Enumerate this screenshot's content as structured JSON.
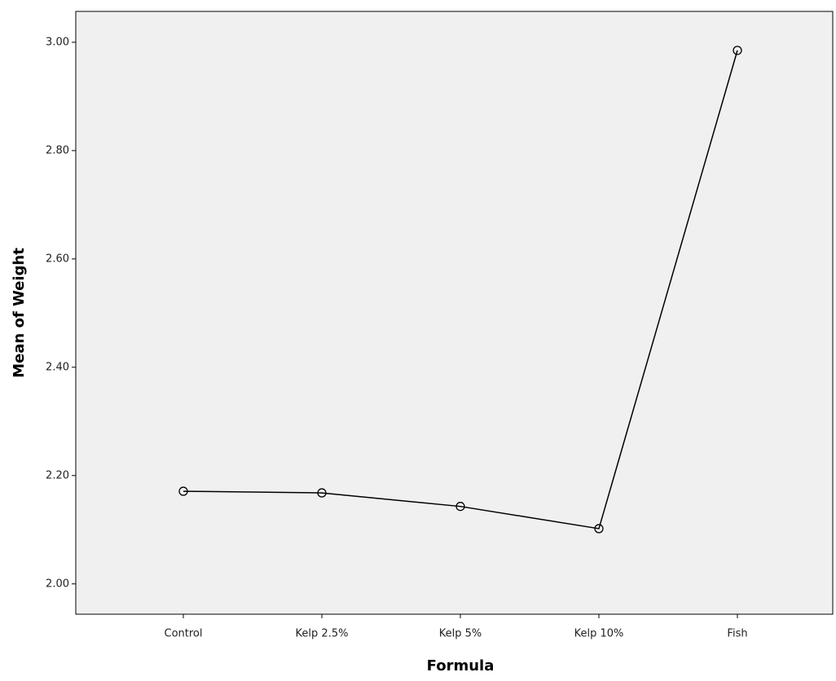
{
  "chart_data": {
    "type": "line",
    "x_label": "Formula",
    "y_label": "Mean of Weight",
    "categories": [
      "Control",
      "Kelp 2.5%",
      "Kelp 5%",
      "Kelp 10%",
      "Fish"
    ],
    "values": [
      2.171,
      2.168,
      2.143,
      2.102,
      2.985
    ],
    "color": "#000000",
    "ylim": [
      1.944,
      3.057
    ],
    "yticks": [
      {
        "value": 2,
        "label": "2.00"
      },
      {
        "value": 2.2,
        "label": "2.20"
      },
      {
        "value": 2.4,
        "label": "2.40"
      },
      {
        "value": 2.6,
        "label": "2.60"
      },
      {
        "value": 2.8,
        "label": "2.80"
      },
      {
        "value": 3,
        "label": "3.00"
      }
    ],
    "grid": false
  }
}
